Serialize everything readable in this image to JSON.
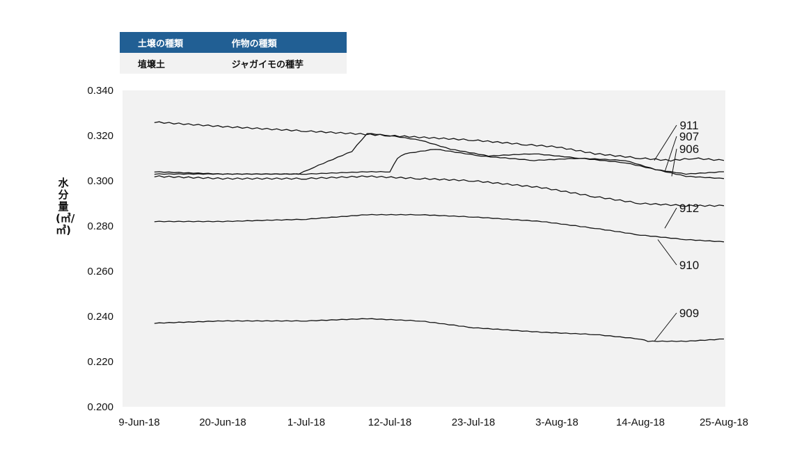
{
  "info_table": {
    "headers": [
      "土壌の種類",
      "作物の種類"
    ],
    "row": [
      "埴壌土",
      "ジャガイモの種芋"
    ]
  },
  "chart_data": {
    "type": "line",
    "xlabel": "",
    "ylabel": "水分量(㎥/㎥)",
    "x_ticks": [
      "9-Jun-18",
      "20-Jun-18",
      "1-Jul-18",
      "12-Jul-18",
      "23-Jul-18",
      "3-Aug-18",
      "14-Aug-18",
      "25-Aug-18"
    ],
    "x_range": [
      "2018-06-09",
      "2018-08-25"
    ],
    "ylim": [
      0.2,
      0.34
    ],
    "y_ticks": [
      "0.200",
      "0.220",
      "0.240",
      "0.260",
      "0.280",
      "0.300",
      "0.320",
      "0.340"
    ],
    "plot_background": "#f2f2f2",
    "line_color": "#111111",
    "grid": false,
    "series": [
      {
        "name": "911",
        "x": [
          "2018-06-11",
          "2018-06-20",
          "2018-07-01",
          "2018-07-12",
          "2018-07-23",
          "2018-07-30",
          "2018-08-03",
          "2018-08-08",
          "2018-08-14",
          "2018-08-18",
          "2018-08-21",
          "2018-08-25"
        ],
        "y": [
          0.326,
          0.324,
          0.322,
          0.32,
          0.318,
          0.316,
          0.315,
          0.312,
          0.31,
          0.309,
          0.31,
          0.309
        ]
      },
      {
        "name": "907",
        "x": [
          "2018-06-11",
          "2018-06-20",
          "2018-06-30",
          "2018-07-02",
          "2018-07-07",
          "2018-07-09",
          "2018-07-12",
          "2018-07-16",
          "2018-07-20",
          "2018-07-25",
          "2018-07-31",
          "2018-08-06",
          "2018-08-12",
          "2018-08-16",
          "2018-08-20",
          "2018-08-25"
        ],
        "y": [
          0.303,
          0.303,
          0.303,
          0.306,
          0.313,
          0.321,
          0.32,
          0.318,
          0.314,
          0.311,
          0.312,
          0.31,
          0.308,
          0.305,
          0.303,
          0.304
        ]
      },
      {
        "name": "906",
        "x": [
          "2018-06-11",
          "2018-06-20",
          "2018-07-01",
          "2018-07-09",
          "2018-07-12",
          "2018-07-13",
          "2018-07-14",
          "2018-07-18",
          "2018-07-24",
          "2018-07-31",
          "2018-08-06",
          "2018-08-12",
          "2018-08-16",
          "2018-08-20",
          "2018-08-25"
        ],
        "y": [
          0.304,
          0.303,
          0.303,
          0.304,
          0.304,
          0.31,
          0.312,
          0.314,
          0.311,
          0.309,
          0.31,
          0.309,
          0.305,
          0.302,
          0.301
        ]
      },
      {
        "name": "910",
        "x": [
          "2018-06-11",
          "2018-06-20",
          "2018-07-01",
          "2018-07-09",
          "2018-07-16",
          "2018-07-23",
          "2018-08-01",
          "2018-08-08",
          "2018-08-14",
          "2018-08-20",
          "2018-08-25"
        ],
        "y": [
          0.302,
          0.301,
          0.301,
          0.302,
          0.301,
          0.3,
          0.297,
          0.293,
          0.29,
          0.289,
          0.289
        ]
      },
      {
        "name": "912",
        "x": [
          "2018-06-11",
          "2018-06-20",
          "2018-07-01",
          "2018-07-09",
          "2018-07-16",
          "2018-07-23",
          "2018-08-01",
          "2018-08-08",
          "2018-08-14",
          "2018-08-20",
          "2018-08-25"
        ],
        "y": [
          0.282,
          0.282,
          0.283,
          0.285,
          0.285,
          0.284,
          0.282,
          0.279,
          0.276,
          0.274,
          0.273
        ]
      },
      {
        "name": "909",
        "x": [
          "2018-06-11",
          "2018-06-20",
          "2018-07-01",
          "2018-07-09",
          "2018-07-16",
          "2018-07-23",
          "2018-08-01",
          "2018-08-08",
          "2018-08-14",
          "2018-08-15",
          "2018-08-20",
          "2018-08-25"
        ],
        "y": [
          0.237,
          0.238,
          0.238,
          0.239,
          0.238,
          0.235,
          0.233,
          0.232,
          0.23,
          0.229,
          0.229,
          0.23
        ]
      }
    ],
    "annotations": [
      "911",
      "907",
      "906",
      "912",
      "910",
      "909"
    ]
  }
}
